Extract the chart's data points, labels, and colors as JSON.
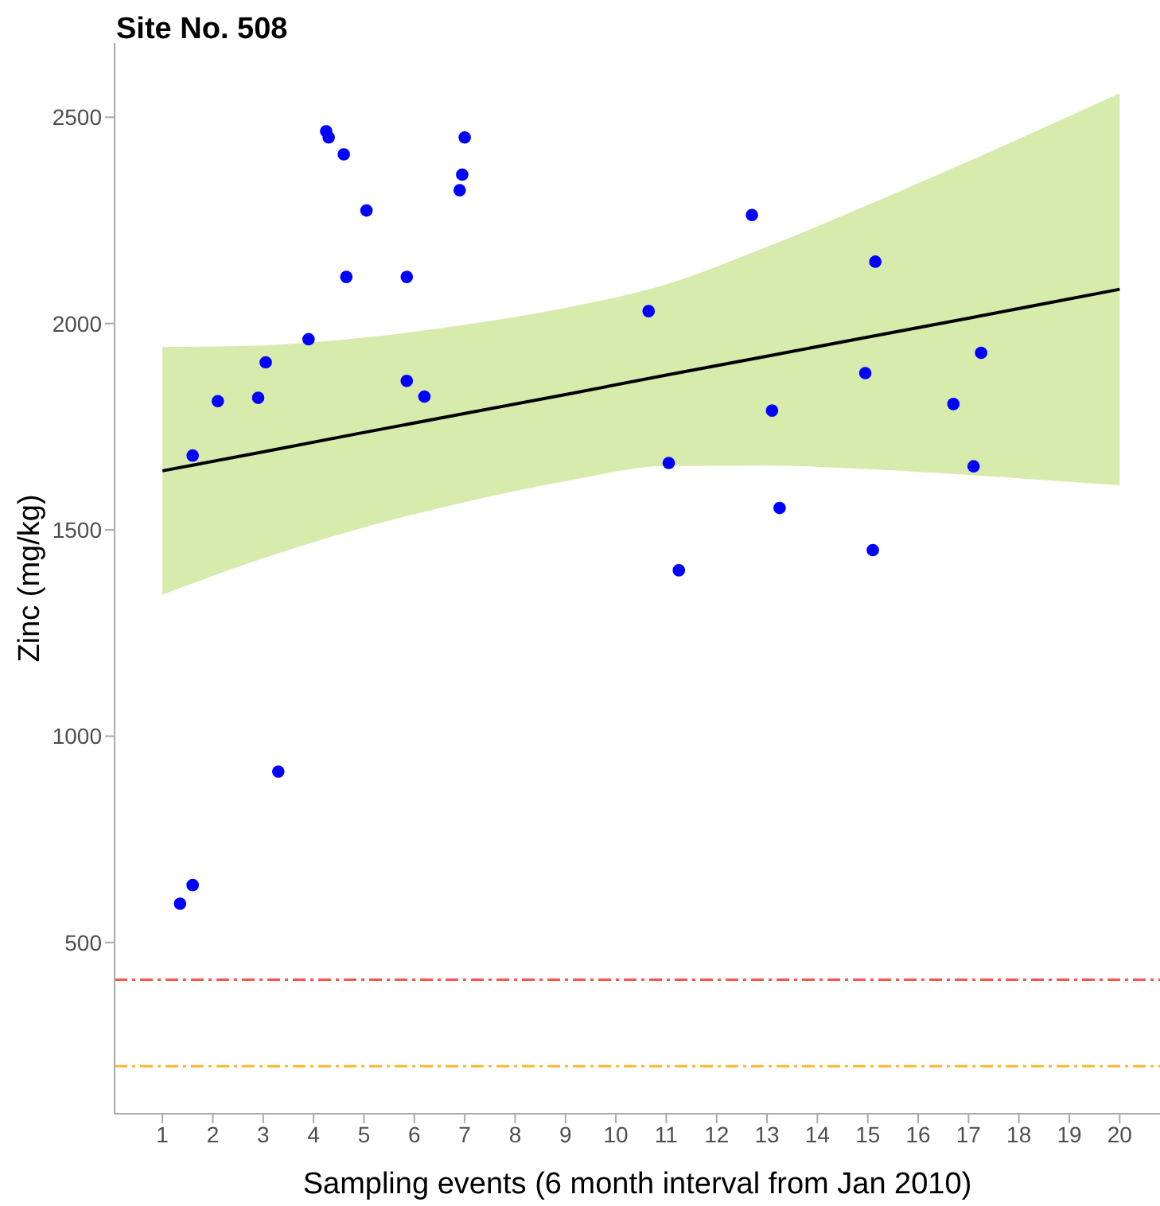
{
  "chart_data": {
    "type": "scatter",
    "title": "Site No. 508",
    "xlabel": "Sampling events (6 month interval from Jan 2010)",
    "ylabel": "Zinc (mg/kg)",
    "xlim": [
      0.05,
      20.8
    ],
    "xticks": [
      1,
      2,
      3,
      4,
      5,
      6,
      7,
      8,
      9,
      10,
      11,
      12,
      13,
      14,
      15,
      16,
      17,
      18,
      19,
      20
    ],
    "ylim": [
      85,
      2680
    ],
    "yticks": [
      500,
      1000,
      1500,
      2000,
      2500
    ],
    "grid": false,
    "marker": "circle",
    "series": [
      {
        "color": "#0000ff",
        "x": [
          1.35,
          1.6,
          1.6,
          2.1,
          2.9,
          3.05,
          3.3,
          3.9,
          4.25,
          4.3,
          4.6,
          4.65,
          5.05,
          5.85,
          5.85,
          6.2,
          6.9,
          6.95,
          7.0,
          10.65,
          11.05,
          11.25,
          12.7,
          13.1,
          13.25,
          14.95,
          15.1,
          15.15,
          16.7,
          17.1,
          17.25
        ],
        "values": [
          594,
          639,
          1680,
          1812,
          1820,
          1906,
          914,
          1962,
          2466,
          2451,
          2410,
          2113,
          2274,
          2113,
          1861,
          1823,
          2323,
          2361,
          2451,
          2030,
          1662,
          1402,
          2263,
          1789,
          1553,
          1880,
          1451,
          2150,
          1805,
          1654,
          1929
        ]
      },
      {
        "type": "line",
        "color": "#000000",
        "marker": "none",
        "line_style": "solid",
        "x": [
          1,
          3,
          5,
          7,
          9,
          11,
          13,
          15,
          17,
          20
        ],
        "values": [
          1643,
          1689,
          1736,
          1782,
          1828,
          1875,
          1921,
          1967,
          2013,
          2083
        ],
        "lower": [
          1343,
          1431,
          1506,
          1567,
          1618,
          1655,
          1656,
          1647,
          1633,
          1608
        ],
        "upper": [
          1943,
          1947,
          1966,
          1997,
          2038,
          2095,
          2186,
          2287,
          2393,
          2558
        ]
      }
    ],
    "ref_lines": [
      {
        "axis": "y",
        "value": 410,
        "color": "#ff5050",
        "line_style": "dashed"
      },
      {
        "axis": "y",
        "value": 200,
        "color": "#ffb732",
        "line_style": "dashed"
      }
    ]
  }
}
